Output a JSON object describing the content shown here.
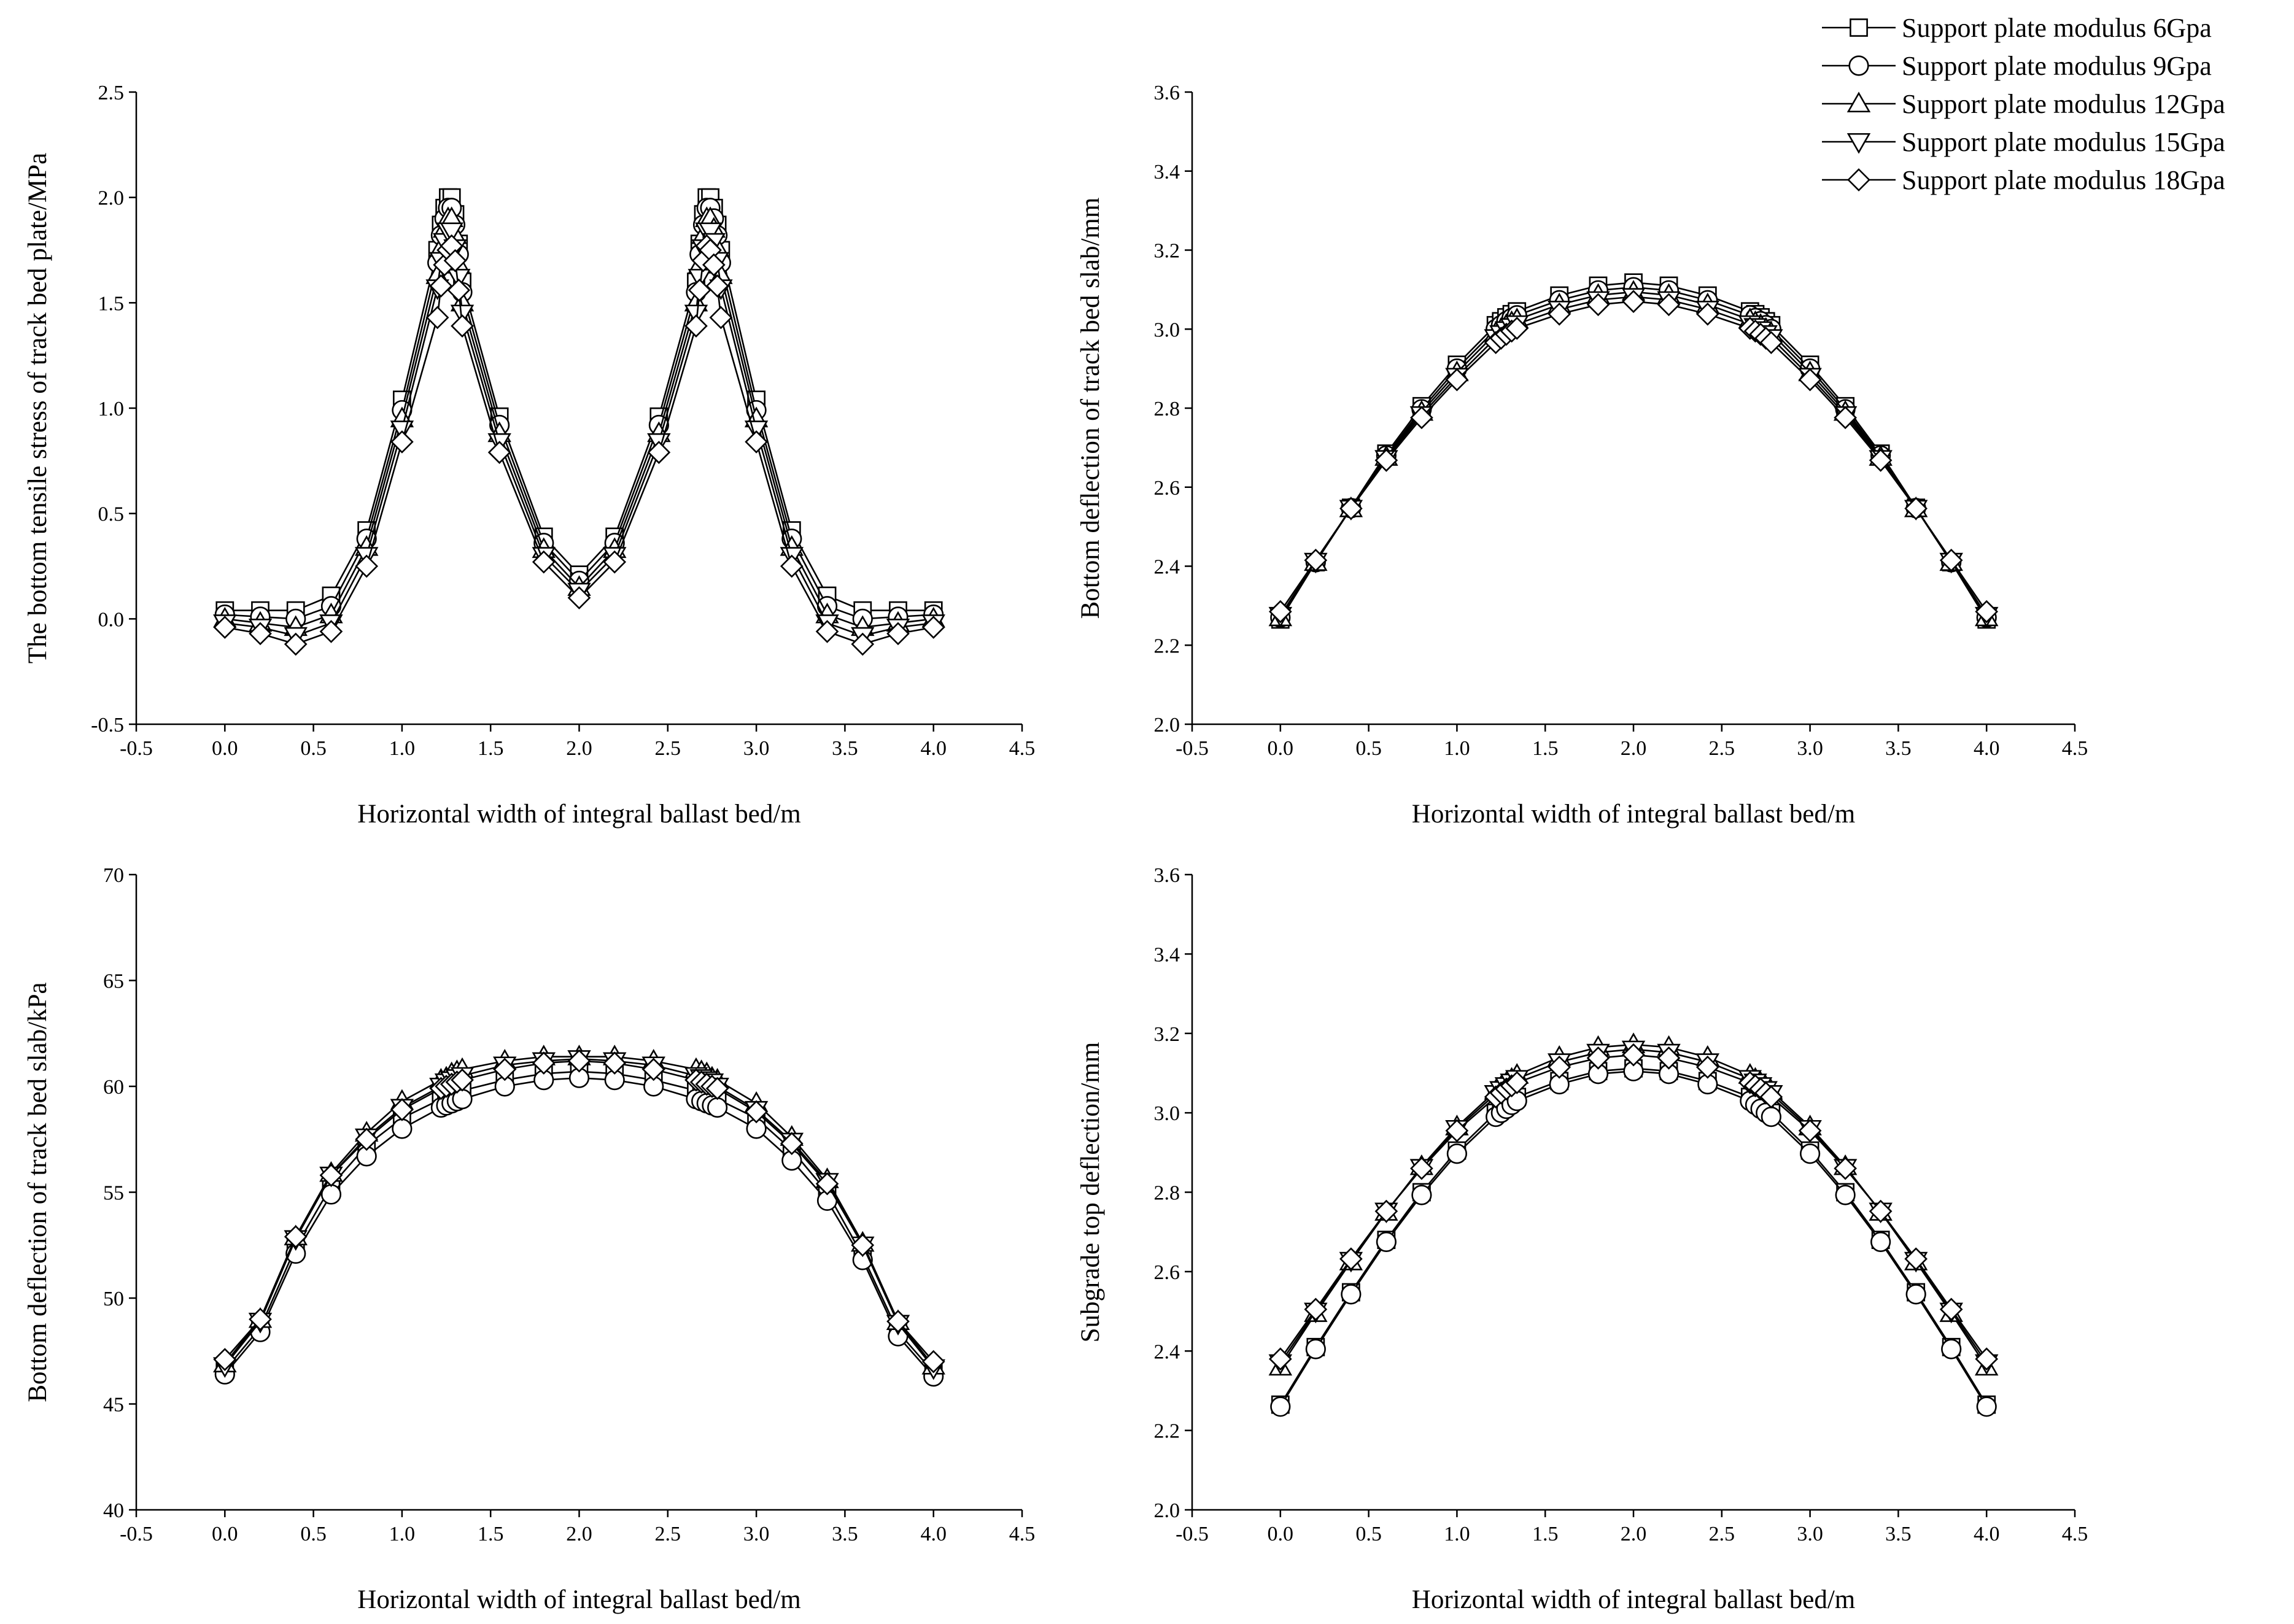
{
  "legend": {
    "position": "top-right",
    "entries": [
      {
        "label": "Support plate modulus 6Gpa",
        "marker": "square"
      },
      {
        "label": "Support plate modulus 9Gpa",
        "marker": "circle"
      },
      {
        "label": "Support plate modulus 12Gpa",
        "marker": "triangle-up"
      },
      {
        "label": "Support plate modulus 15Gpa",
        "marker": "triangle-down"
      },
      {
        "label": "Support plate modulus 18Gpa",
        "marker": "diamond"
      }
    ]
  },
  "chart_data": [
    {
      "type": "line",
      "position": "top-left",
      "title": "",
      "xlabel": "Horizontal width of integral ballast bed/m",
      "ylabel": "The bottom tensile stress of track bed plate/MPa",
      "xlim": [
        -0.5,
        4.5
      ],
      "ylim": [
        -0.5,
        2.5
      ],
      "xticks": [
        -0.5,
        0.0,
        0.5,
        1.0,
        1.5,
        2.0,
        2.5,
        3.0,
        3.5,
        4.0,
        4.5
      ],
      "yticks": [
        -0.5,
        0.0,
        0.5,
        1.0,
        1.5,
        2.0,
        2.5
      ],
      "x": [
        0,
        0.2,
        0.4,
        0.6,
        0.8,
        1.0,
        1.2,
        1.22,
        1.24,
        1.26,
        1.28,
        1.3,
        1.32,
        1.34,
        1.55,
        1.8,
        2.0,
        2.2,
        2.45,
        2.66,
        2.68,
        2.7,
        2.72,
        2.74,
        2.76,
        2.78,
        2.8,
        3.0,
        3.2,
        3.4,
        3.6,
        3.8,
        4.0
      ],
      "series": [
        {
          "name": "Support plate modulus 6Gpa",
          "values": [
            0.04,
            0.04,
            0.04,
            0.11,
            0.42,
            1.04,
            1.75,
            1.87,
            1.95,
            2.0,
            2.0,
            1.92,
            1.78,
            1.6,
            0.96,
            0.39,
            0.21,
            0.39,
            0.96,
            1.6,
            1.78,
            1.92,
            2.0,
            2.0,
            1.95,
            1.87,
            1.75,
            1.04,
            0.42,
            0.11,
            0.04,
            0.04,
            0.04
          ]
        },
        {
          "name": "Support plate modulus 9Gpa",
          "values": [
            0.02,
            0.01,
            0.0,
            0.06,
            0.38,
            0.99,
            1.69,
            1.82,
            1.9,
            1.95,
            1.95,
            1.87,
            1.73,
            1.55,
            0.92,
            0.36,
            0.18,
            0.36,
            0.92,
            1.55,
            1.73,
            1.87,
            1.95,
            1.95,
            1.9,
            1.82,
            1.69,
            0.99,
            0.38,
            0.06,
            0.0,
            0.01,
            0.02
          ]
        },
        {
          "name": "Support plate modulus 12Gpa",
          "values": [
            0.0,
            -0.02,
            -0.04,
            0.02,
            0.34,
            0.95,
            1.63,
            1.76,
            1.85,
            1.9,
            1.9,
            1.82,
            1.68,
            1.5,
            0.88,
            0.33,
            0.15,
            0.33,
            0.88,
            1.5,
            1.68,
            1.82,
            1.9,
            1.9,
            1.85,
            1.76,
            1.63,
            0.95,
            0.34,
            0.02,
            -0.04,
            -0.02,
            0.0
          ]
        },
        {
          "name": "Support plate modulus 15Gpa",
          "values": [
            -0.02,
            -0.04,
            -0.08,
            -0.02,
            0.3,
            0.9,
            1.57,
            1.7,
            1.79,
            1.84,
            1.84,
            1.76,
            1.62,
            1.45,
            0.84,
            0.3,
            0.13,
            0.3,
            0.84,
            1.45,
            1.62,
            1.76,
            1.84,
            1.84,
            1.79,
            1.7,
            1.57,
            0.9,
            0.3,
            -0.02,
            -0.08,
            -0.04,
            -0.02
          ]
        },
        {
          "name": "Support plate modulus 18Gpa",
          "values": [
            -0.04,
            -0.07,
            -0.12,
            -0.06,
            0.25,
            0.84,
            1.43,
            1.58,
            1.68,
            1.75,
            1.77,
            1.7,
            1.56,
            1.39,
            0.79,
            0.27,
            0.1,
            0.27,
            0.79,
            1.39,
            1.56,
            1.7,
            1.77,
            1.75,
            1.68,
            1.58,
            1.43,
            0.84,
            0.25,
            -0.06,
            -0.12,
            -0.07,
            -0.04
          ]
        }
      ]
    },
    {
      "type": "line",
      "position": "top-right",
      "title": "",
      "xlabel": "Horizontal width of integral ballast bed/m",
      "ylabel": "Bottom deflection of track bed slab/mm",
      "xlim": [
        -0.5,
        4.5
      ],
      "ylim": [
        2.0,
        3.6
      ],
      "xticks": [
        -0.5,
        0.0,
        0.5,
        1.0,
        1.5,
        2.0,
        2.5,
        3.0,
        3.5,
        4.0,
        4.5
      ],
      "yticks": [
        2.0,
        2.2,
        2.4,
        2.6,
        2.8,
        3.0,
        3.2,
        3.4,
        3.6
      ],
      "x": [
        0,
        0.2,
        0.4,
        0.6,
        0.8,
        1.0,
        1.22,
        1.25,
        1.28,
        1.31,
        1.34,
        1.58,
        1.8,
        2.0,
        2.2,
        2.42,
        2.66,
        2.69,
        2.72,
        2.75,
        2.78,
        3.0,
        3.2,
        3.4,
        3.6,
        3.8,
        4.0
      ],
      "series": [
        {
          "name": "Support plate modulus 6Gpa",
          "values": [
            2.265,
            2.41,
            2.548,
            2.685,
            2.805,
            2.91,
            3.01,
            3.02,
            3.03,
            3.038,
            3.045,
            3.085,
            3.11,
            3.118,
            3.11,
            3.085,
            3.045,
            3.038,
            3.03,
            3.02,
            3.01,
            2.91,
            2.805,
            2.685,
            2.548,
            2.41,
            2.265
          ]
        },
        {
          "name": "Support plate modulus 9Gpa",
          "values": [
            2.27,
            2.41,
            2.547,
            2.68,
            2.797,
            2.9,
            3.0,
            3.01,
            3.02,
            3.028,
            3.035,
            3.073,
            3.098,
            3.106,
            3.098,
            3.073,
            3.035,
            3.028,
            3.02,
            3.01,
            3.0,
            2.9,
            2.797,
            2.68,
            2.547,
            2.41,
            2.27
          ]
        },
        {
          "name": "Support plate modulus 12Gpa",
          "values": [
            2.27,
            2.41,
            2.546,
            2.676,
            2.79,
            2.89,
            2.99,
            3.0,
            3.01,
            3.017,
            3.024,
            3.062,
            3.086,
            3.094,
            3.086,
            3.062,
            3.024,
            3.017,
            3.01,
            3.0,
            2.99,
            2.89,
            2.79,
            2.676,
            2.546,
            2.41,
            2.27
          ]
        },
        {
          "name": "Support plate modulus 15Gpa",
          "values": [
            2.275,
            2.412,
            2.546,
            2.672,
            2.783,
            2.88,
            2.978,
            2.988,
            2.998,
            3.006,
            3.013,
            3.05,
            3.074,
            3.082,
            3.074,
            3.05,
            3.013,
            3.006,
            2.998,
            2.988,
            2.978,
            2.88,
            2.783,
            2.672,
            2.546,
            2.412,
            2.275
          ]
        },
        {
          "name": "Support plate modulus 18Gpa",
          "values": [
            2.285,
            2.415,
            2.546,
            2.668,
            2.776,
            2.872,
            2.966,
            2.977,
            2.987,
            2.995,
            3.002,
            3.038,
            3.062,
            3.07,
            3.062,
            3.038,
            3.002,
            2.995,
            2.987,
            2.977,
            2.966,
            2.872,
            2.776,
            2.668,
            2.546,
            2.415,
            2.285
          ]
        }
      ]
    },
    {
      "type": "line",
      "position": "bottom-left",
      "title": "",
      "xlabel": "Horizontal width of integral ballast bed/m",
      "ylabel": "Bottom deflection of track bed slab/kPa",
      "xlim": [
        -0.5,
        4.5
      ],
      "ylim": [
        40,
        70
      ],
      "xticks": [
        -0.5,
        0.0,
        0.5,
        1.0,
        1.5,
        2.0,
        2.5,
        3.0,
        3.5,
        4.0,
        4.5
      ],
      "yticks": [
        40,
        45,
        50,
        55,
        60,
        65,
        70
      ],
      "x": [
        0,
        0.2,
        0.4,
        0.6,
        0.8,
        1.0,
        1.22,
        1.25,
        1.28,
        1.31,
        1.34,
        1.58,
        1.8,
        2.0,
        2.2,
        2.42,
        2.66,
        2.69,
        2.72,
        2.75,
        2.78,
        3.0,
        3.2,
        3.4,
        3.6,
        3.8,
        4.0
      ],
      "series": [
        {
          "name": "Support plate modulus 6Gpa",
          "values": [
            46.6,
            48.6,
            52.4,
            55.3,
            57.2,
            58.5,
            59.4,
            59.5,
            59.6,
            59.7,
            59.8,
            60.3,
            60.6,
            60.7,
            60.6,
            60.3,
            59.8,
            59.7,
            59.6,
            59.5,
            59.4,
            58.5,
            57.0,
            55.0,
            52.0,
            48.4,
            46.5
          ]
        },
        {
          "name": "Support plate modulus 9Gpa",
          "values": [
            46.4,
            48.4,
            52.1,
            54.9,
            56.7,
            58.0,
            59.0,
            59.1,
            59.2,
            59.3,
            59.4,
            60.0,
            60.3,
            60.4,
            60.3,
            60.0,
            59.4,
            59.3,
            59.2,
            59.1,
            59.0,
            58.0,
            56.5,
            54.6,
            51.8,
            48.2,
            46.3
          ]
        },
        {
          "name": "Support plate modulus 12Gpa",
          "values": [
            46.9,
            49.0,
            52.9,
            55.9,
            57.8,
            59.3,
            60.3,
            60.4,
            60.6,
            60.7,
            60.8,
            61.2,
            61.4,
            61.4,
            61.4,
            61.2,
            60.8,
            60.7,
            60.6,
            60.4,
            60.3,
            59.2,
            57.6,
            55.6,
            52.6,
            48.9,
            46.8
          ]
        },
        {
          "name": "Support plate modulus 15Gpa",
          "values": [
            46.8,
            48.9,
            52.8,
            55.8,
            57.6,
            59.0,
            60.0,
            60.2,
            60.3,
            60.4,
            60.5,
            61.0,
            61.2,
            61.3,
            61.2,
            61.0,
            60.5,
            60.4,
            60.3,
            60.2,
            60.0,
            58.9,
            57.4,
            55.5,
            52.5,
            48.8,
            46.7
          ]
        },
        {
          "name": "Support plate modulus 18Gpa",
          "values": [
            47.1,
            49.0,
            52.9,
            55.8,
            57.5,
            58.9,
            59.9,
            60.0,
            60.1,
            60.2,
            60.3,
            60.8,
            61.1,
            61.2,
            61.1,
            60.8,
            60.3,
            60.2,
            60.1,
            60.0,
            59.9,
            58.8,
            57.3,
            55.4,
            52.5,
            48.9,
            47.0
          ]
        }
      ]
    },
    {
      "type": "line",
      "position": "bottom-right",
      "title": "",
      "xlabel": "Horizontal width of integral ballast bed/m",
      "ylabel": "Subgrade top deflection/mm",
      "xlim": [
        -0.5,
        4.5
      ],
      "ylim": [
        2.0,
        3.6
      ],
      "xticks": [
        -0.5,
        0.0,
        0.5,
        1.0,
        1.5,
        2.0,
        2.5,
        3.0,
        3.5,
        4.0,
        4.5
      ],
      "yticks": [
        2.0,
        2.2,
        2.4,
        2.6,
        2.8,
        3.0,
        3.2,
        3.4,
        3.6
      ],
      "x": [
        0,
        0.2,
        0.4,
        0.6,
        0.8,
        1.0,
        1.22,
        1.25,
        1.28,
        1.31,
        1.34,
        1.58,
        1.8,
        2.0,
        2.2,
        2.42,
        2.66,
        2.69,
        2.72,
        2.75,
        2.78,
        3.0,
        3.2,
        3.4,
        3.6,
        3.8,
        4.0
      ],
      "series": [
        {
          "name": "Support plate modulus 6Gpa",
          "values": [
            2.265,
            2.41,
            2.548,
            2.68,
            2.8,
            2.905,
            3.0,
            3.01,
            3.02,
            3.03,
            3.04,
            3.08,
            3.105,
            3.112,
            3.105,
            3.08,
            3.04,
            3.03,
            3.02,
            3.01,
            3.0,
            2.905,
            2.8,
            2.68,
            2.548,
            2.41,
            2.265
          ]
        },
        {
          "name": "Support plate modulus 9Gpa",
          "values": [
            2.26,
            2.405,
            2.543,
            2.675,
            2.793,
            2.897,
            2.99,
            3.0,
            3.01,
            3.02,
            3.03,
            3.072,
            3.098,
            3.105,
            3.098,
            3.072,
            3.03,
            3.02,
            3.01,
            3.0,
            2.99,
            2.897,
            2.793,
            2.675,
            2.543,
            2.405,
            2.26
          ]
        },
        {
          "name": "Support plate modulus 12Gpa",
          "values": [
            2.36,
            2.495,
            2.625,
            2.75,
            2.865,
            2.965,
            3.055,
            3.065,
            3.075,
            3.085,
            3.095,
            3.14,
            3.165,
            3.172,
            3.165,
            3.14,
            3.095,
            3.085,
            3.075,
            3.065,
            3.055,
            2.965,
            2.865,
            2.75,
            2.625,
            2.495,
            2.36
          ]
        },
        {
          "name": "Support plate modulus 15Gpa",
          "values": [
            2.37,
            2.5,
            2.628,
            2.752,
            2.862,
            2.96,
            3.048,
            3.058,
            3.068,
            3.077,
            3.086,
            3.128,
            3.152,
            3.16,
            3.152,
            3.128,
            3.086,
            3.077,
            3.068,
            3.058,
            3.048,
            2.96,
            2.862,
            2.752,
            2.628,
            2.5,
            2.37
          ]
        },
        {
          "name": "Support plate modulus 18Gpa",
          "values": [
            2.38,
            2.505,
            2.632,
            2.752,
            2.86,
            2.955,
            3.04,
            3.05,
            3.06,
            3.068,
            3.076,
            3.115,
            3.138,
            3.146,
            3.138,
            3.115,
            3.076,
            3.068,
            3.06,
            3.05,
            3.04,
            2.955,
            2.86,
            2.752,
            2.632,
            2.505,
            2.38
          ]
        }
      ]
    }
  ]
}
